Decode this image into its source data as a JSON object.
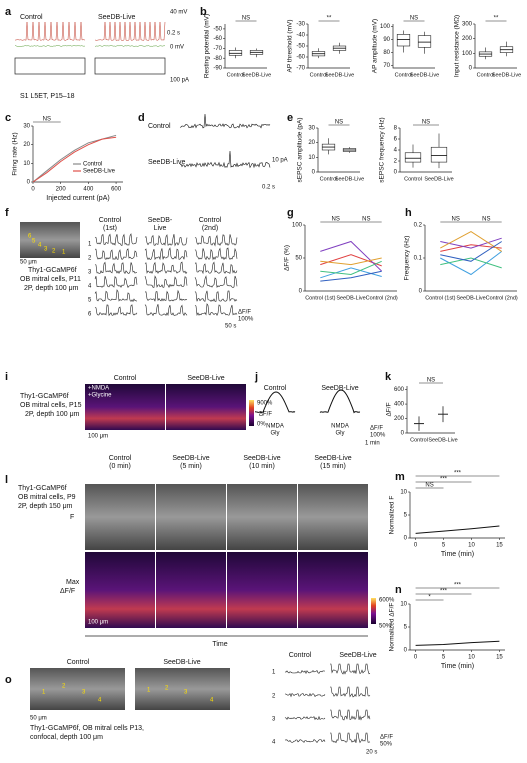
{
  "figure": {
    "letters": [
      "a",
      "b",
      "c",
      "d",
      "e",
      "f",
      "g",
      "h",
      "i",
      "j",
      "k",
      "l",
      "m",
      "n",
      "o"
    ],
    "texts": [
      "Control",
      "SeeDB-Live",
      "0.2 s",
      "40 mV",
      "0 mV",
      "100 pA",
      "S1 L5ET, P15–18",
      "Control",
      "SeeDB-Live",
      "10 pA",
      "0.2 s",
      "50 μm",
      "Thy1-GCaMP6f",
      "OB mitral cells, P11",
      "2P, depth 100 μm",
      "6",
      "5",
      "4",
      "3",
      "2",
      "1",
      "Control",
      "(1st)",
      "SeeDB-",
      "Live",
      "Control",
      "(2nd)",
      "1",
      "2",
      "3",
      "4",
      "5",
      "6",
      "ΔF/F",
      "100%",
      "50 s",
      "+NMDA",
      "+Glycine",
      "Control",
      "SeeDB-Live",
      "Thy1-GCaMP6f",
      "OB mitral cells, P15",
      "2P, depth 100 μm",
      "100 μm",
      "900%",
      "0%",
      "ΔF/F",
      "Control",
      "SeeDB-Live",
      "NMDA",
      "Gly",
      "NMDA",
      "Gly",
      "ΔF/F",
      "100%",
      "1 min",
      "Thy1-GCaMP6f",
      "OB mitral cells, P9",
      "2P, depth 150 μm",
      "Control",
      "(0 min)",
      "SeeDB-Live",
      "(5 min)",
      "SeeDB-Live",
      "(10 min)",
      "SeeDB-Live",
      "(15 min)",
      "F",
      "Max",
      "ΔF/F",
      "100 μm",
      "600%",
      "50%",
      "Time",
      "Control",
      "SeeDB-Live",
      "1",
      "2",
      "3",
      "4",
      "1",
      "2",
      "3",
      "4",
      "50 μm",
      "Thy1-GCaMP6f, OB mitral cells P13,",
      "confocal, depth 100 μm",
      "Control",
      "SeeDB-Live",
      "1",
      "2",
      "3",
      "4",
      "ΔF/F",
      "50%",
      "20 s"
    ],
    "axes": [
      {
        "ylabel": "Resting potential (mV)",
        "categories": [
          "Control",
          "SeeDB-Live"
        ],
        "ylim": [
          -90,
          -45
        ],
        "yticks": [
          -50,
          -60,
          -70,
          -80,
          -90
        ],
        "sig": [
          "NS"
        ],
        "boxes": [
          {
            "min": -80,
            "q1": -77,
            "median": -75,
            "q3": -72,
            "max": -69
          },
          {
            "min": -79,
            "q1": -76,
            "median": -74,
            "q3": -72,
            "max": -70
          }
        ]
      },
      {
        "ylabel": "AP threshold (mV)",
        "categories": [
          "Control",
          "SeeDB-Live"
        ],
        "ylim": [
          -70,
          -30
        ],
        "yticks": [
          -30,
          -40,
          -50,
          -60,
          -70
        ],
        "sig": [
          "**"
        ],
        "boxes": [
          {
            "min": -61,
            "q1": -59,
            "median": -57,
            "q3": -55,
            "max": -52
          },
          {
            "min": -57,
            "q1": -54,
            "median": -52,
            "q3": -50,
            "max": -47
          }
        ]
      },
      {
        "ylabel": "AP amplitude (mV)",
        "categories": [
          "Control",
          "SeeDB-Live"
        ],
        "ylim": [
          68,
          102
        ],
        "yticks": [
          70,
          80,
          90,
          100
        ],
        "sig": [
          "NS"
        ],
        "boxes": [
          {
            "min": 80,
            "q1": 85,
            "median": 90,
            "q3": 94,
            "max": 97
          },
          {
            "min": 79,
            "q1": 84,
            "median": 88,
            "q3": 93,
            "max": 96
          }
        ]
      },
      {
        "ylabel": "Input resistance (MΩ)",
        "categories": [
          "Control",
          "SeeDB-Live"
        ],
        "ylim": [
          0,
          300
        ],
        "yticks": [
          0,
          100,
          200,
          300
        ],
        "sig": [
          "**"
        ],
        "boxes": [
          {
            "min": 60,
            "q1": 80,
            "median": 95,
            "q3": 110,
            "max": 140
          },
          {
            "min": 80,
            "q1": 105,
            "median": 125,
            "q3": 145,
            "max": 180
          }
        ]
      },
      {
        "ylabel": "Firing rate (Hz)",
        "xlabel": "Injected current (pA)",
        "xlim": [
          0,
          650
        ],
        "xticks": [
          0,
          200,
          400,
          600
        ],
        "ylim": [
          0,
          30
        ],
        "yticks": [
          0,
          10,
          20,
          30
        ],
        "sig": [
          "NS"
        ],
        "series": [
          {
            "name": "Control",
            "color": "#888888",
            "x": [
              0,
              100,
              200,
              300,
              400,
              500,
              600
            ],
            "values": [
              0,
              6,
              12,
              17,
              21,
              23,
              25
            ]
          },
          {
            "name": "SeeDB-Live",
            "color": "#e0504a",
            "x": [
              0,
              100,
              200,
              300,
              400,
              500,
              600
            ],
            "values": [
              0,
              5,
              11,
              16,
              20,
              23,
              24
            ]
          }
        ]
      },
      {
        "ylabel": "sEPSC amplitude (pA)",
        "categories": [
          "Control",
          "SeeDB-Live"
        ],
        "ylim": [
          0,
          30
        ],
        "yticks": [
          0,
          10,
          20,
          30
        ],
        "sig": [
          "NS"
        ],
        "boxes": [
          {
            "min": 12,
            "q1": 15,
            "median": 17,
            "q3": 19,
            "max": 23
          },
          {
            "min": 13,
            "q1": 14,
            "median": 15,
            "q3": 16,
            "max": 17
          }
        ]
      },
      {
        "ylabel": "sEPSC frequency (Hz)",
        "categories": [
          "Control",
          "SeeDB-Live"
        ],
        "ylim": [
          0,
          8
        ],
        "yticks": [
          0,
          2,
          4,
          6,
          8
        ],
        "sig": [
          "NS"
        ],
        "boxes": [
          {
            "min": 0.8,
            "q1": 1.8,
            "median": 2.5,
            "q3": 3.5,
            "max": 5
          },
          {
            "min": 0.7,
            "q1": 1.8,
            "median": 3,
            "q3": 4.5,
            "max": 7
          }
        ]
      },
      {
        "ylabel": "ΔF/F (%)",
        "categories": [
          "Control (1st)",
          "SeeDB-Live",
          "Control (2nd)"
        ],
        "ylim": [
          0,
          100
        ],
        "yticks": [
          0,
          50,
          100
        ],
        "sig": [
          "NS",
          "NS"
        ],
        "series": [
          {
            "color": "#e04040",
            "values": [
              40,
              55,
              38
            ]
          },
          {
            "color": "#40a0e0",
            "values": [
              20,
              35,
              22
            ]
          },
          {
            "color": "#8040c0",
            "values": [
              60,
              75,
              30
            ]
          },
          {
            "color": "#40c080",
            "values": [
              30,
              25,
              45
            ]
          },
          {
            "color": "#e0a030",
            "values": [
              45,
              40,
              50
            ]
          },
          {
            "color": "#3060c0",
            "values": [
              15,
              20,
              30
            ]
          }
        ]
      },
      {
        "ylabel": "Frequency (Hz)",
        "categories": [
          "Control (1st)",
          "SeeDB-Live",
          "Control (2nd)"
        ],
        "ylim": [
          0,
          0.2
        ],
        "yticks": [
          0,
          0.1,
          0.2
        ],
        "sig": [
          "NS",
          "NS"
        ],
        "series": [
          {
            "color": "#e04040",
            "values": [
              0.12,
              0.14,
              0.13
            ]
          },
          {
            "color": "#40a0e0",
            "values": [
              0.1,
              0.05,
              0.12
            ]
          },
          {
            "color": "#8040c0",
            "values": [
              0.15,
              0.13,
              0.16
            ]
          },
          {
            "color": "#40c080",
            "values": [
              0.08,
              0.1,
              0.07
            ]
          },
          {
            "color": "#e0a030",
            "values": [
              0.13,
              0.18,
              0.12
            ]
          },
          {
            "color": "#3060c0",
            "values": [
              0.11,
              0.09,
              0.15
            ]
          }
        ]
      },
      {
        "ylabel": "ΔF/F",
        "categories": [
          "Control",
          "SeeDB-Live"
        ],
        "ylim": [
          0,
          650
        ],
        "yticks": [
          0,
          200,
          400,
          600
        ],
        "sig": [
          "NS"
        ],
        "means": [
          130,
          260
        ],
        "sd": [
          100,
          110
        ]
      },
      {
        "ylabel": "Normalized F",
        "xlabel": "Time (min)",
        "xlim": [
          -1,
          16
        ],
        "xticks": [
          0,
          5,
          10,
          15
        ],
        "ylim": [
          0,
          10
        ],
        "yticks": [
          0,
          5,
          10
        ],
        "sig": [
          "NS",
          "***",
          "***"
        ],
        "series": [
          {
            "color": "#111111",
            "x": [
              0,
              5,
              10,
              15
            ],
            "values": [
              1,
              1.5,
              2,
              2.6
            ]
          }
        ]
      },
      {
        "ylabel": "Normalized ΔF/F",
        "xlabel": "Time (min)",
        "xlim": [
          -1,
          16
        ],
        "xticks": [
          0,
          5,
          10,
          15
        ],
        "ylim": [
          0,
          10
        ],
        "yticks": [
          0,
          5,
          10
        ],
        "sig": [
          "*",
          "***",
          "***"
        ],
        "series": [
          {
            "color": "#111111",
            "x": [
              0,
              5,
              10,
              15
            ],
            "values": [
              1,
              1.2,
              1.6,
              1.9
            ]
          }
        ]
      }
    ]
  }
}
